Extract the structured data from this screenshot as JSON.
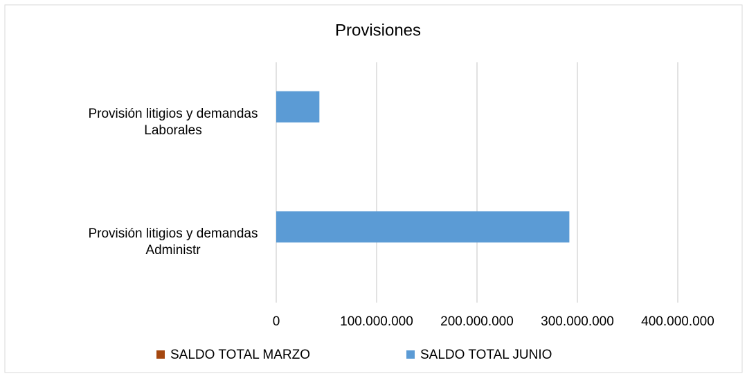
{
  "chart_data": {
    "type": "hbar",
    "title": "Provisiones",
    "categories": [
      "Provisión litigios y demandas Laborales",
      "Provisión litigios y demandas Administr"
    ],
    "series": [
      {
        "name": "SALDO TOTAL MARZO",
        "color": "#a5470f",
        "values": [
          0,
          0
        ]
      },
      {
        "name": "SALDO TOTAL JUNIO",
        "color": "#5b9bd5",
        "values": [
          43000000,
          292000000
        ]
      }
    ],
    "xlim": [
      0,
      400000000
    ],
    "xticks": [
      0,
      {
        "value": 100000000,
        "label": "100.000.000"
      },
      {
        "value": 200000000,
        "label": "200.000.000"
      },
      {
        "value": 300000000,
        "label": "300.000.000"
      },
      {
        "value": 400000000,
        "label": "400.000.000"
      }
    ],
    "grid": true
  }
}
